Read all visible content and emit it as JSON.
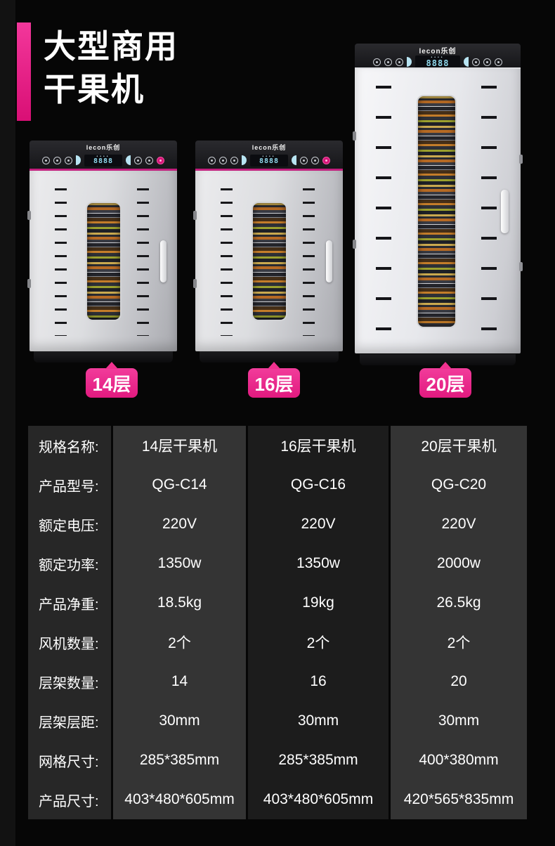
{
  "colors": {
    "accent_pink": "#ed2b90",
    "panel_stripe_pink": "#c21f7d",
    "digit_blue": "#8fd8ec",
    "table_label_bg": "#272727",
    "table_col_light": "#343434",
    "table_col_dark": "#1c1c1c"
  },
  "header": {
    "title_line1": "大型商用",
    "title_line2": "干果机"
  },
  "machines": [
    {
      "brand": "lecon乐创",
      "display": "8888",
      "tag": "14层"
    },
    {
      "brand": "lecon乐创",
      "display": "8888",
      "tag": "16层"
    },
    {
      "brand": "lecon乐创",
      "display": "8888",
      "tag": "20层"
    }
  ],
  "spec_table": {
    "rows": [
      {
        "label": "规格名称:",
        "values": [
          "14层干果机",
          "16层干果机",
          "20层干果机"
        ]
      },
      {
        "label": "产品型号:",
        "values": [
          "QG-C14",
          "QG-C16",
          "QG-C20"
        ]
      },
      {
        "label": "额定电压:",
        "values": [
          "220V",
          "220V",
          "220V"
        ]
      },
      {
        "label": "额定功率:",
        "values": [
          "1350w",
          "1350w",
          "2000w"
        ]
      },
      {
        "label": "产品净重:",
        "values": [
          "18.5kg",
          "19kg",
          "26.5kg"
        ]
      },
      {
        "label": "风机数量:",
        "values": [
          "2个",
          "2个",
          "2个"
        ]
      },
      {
        "label": "层架数量:",
        "values": [
          "14",
          "16",
          "20"
        ]
      },
      {
        "label": "层架层距:",
        "values": [
          "30mm",
          "30mm",
          "30mm"
        ]
      },
      {
        "label": "网格尺寸:",
        "values": [
          "285*385mm",
          "285*385mm",
          "400*380mm"
        ]
      },
      {
        "label": "产品尺寸:",
        "values": [
          "403*480*605mm",
          "403*480*605mm",
          "420*565*835mm"
        ]
      }
    ]
  }
}
